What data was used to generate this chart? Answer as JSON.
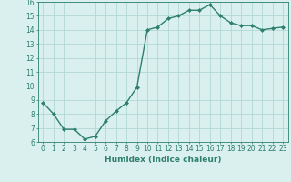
{
  "x": [
    0,
    1,
    2,
    3,
    4,
    5,
    6,
    7,
    8,
    9,
    10,
    11,
    12,
    13,
    14,
    15,
    16,
    17,
    18,
    19,
    20,
    21,
    22,
    23
  ],
  "y": [
    8.8,
    8.0,
    6.9,
    6.9,
    6.2,
    6.4,
    7.5,
    8.2,
    8.8,
    9.9,
    14.0,
    14.2,
    14.8,
    15.0,
    15.4,
    15.4,
    15.8,
    15.0,
    14.5,
    14.3,
    14.3,
    14.0,
    14.1,
    14.2
  ],
  "line_color": "#2e7f6e",
  "marker": "D",
  "marker_size": 2,
  "bg_color": "#d9f0ee",
  "grid_color": "#b0d8d4",
  "xlabel": "Humidex (Indice chaleur)",
  "ylim": [
    6,
    16
  ],
  "xlim_min": -0.5,
  "xlim_max": 23.5,
  "yticks": [
    6,
    7,
    8,
    9,
    10,
    11,
    12,
    13,
    14,
    15,
    16
  ],
  "xticks": [
    0,
    1,
    2,
    3,
    4,
    5,
    6,
    7,
    8,
    9,
    10,
    11,
    12,
    13,
    14,
    15,
    16,
    17,
    18,
    19,
    20,
    21,
    22,
    23
  ],
  "tick_label_fontsize": 5.5,
  "xlabel_fontsize": 6.5,
  "line_width": 1.0
}
